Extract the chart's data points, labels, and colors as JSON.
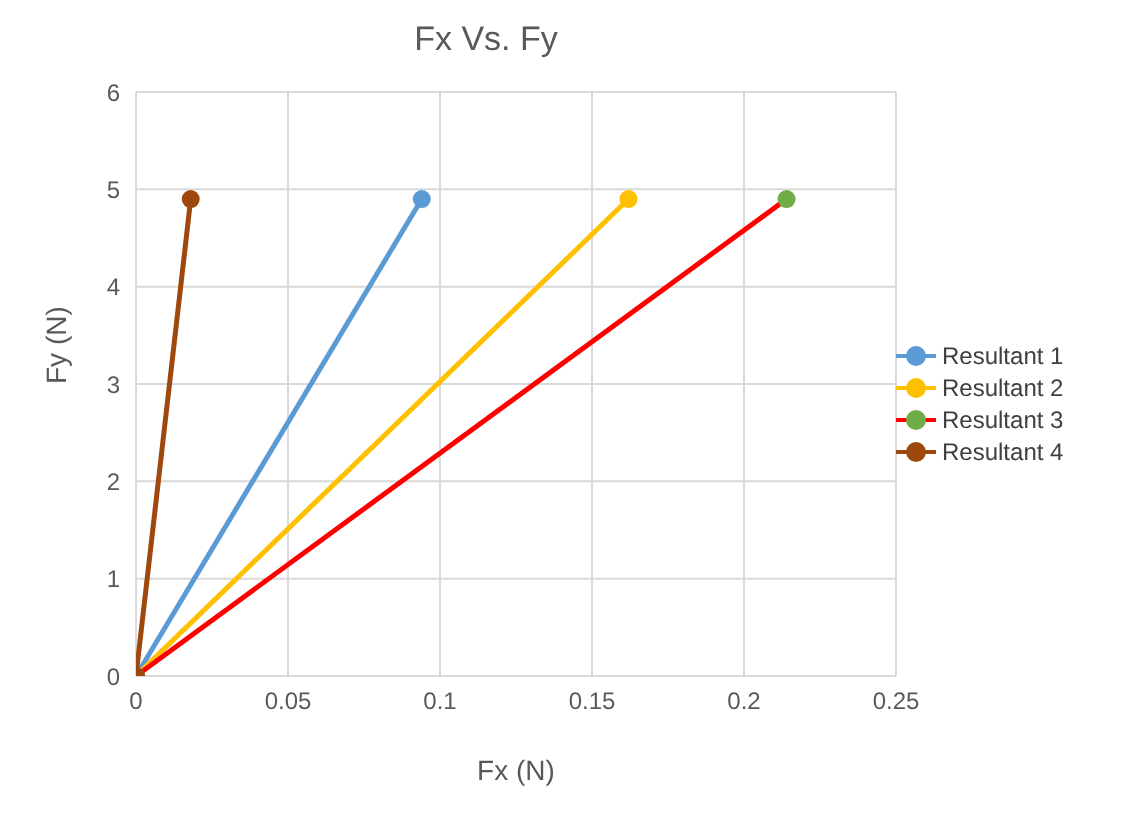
{
  "chart_data": {
    "type": "line",
    "title": "Fx Vs. Fy",
    "xlabel": "Fx (N)",
    "ylabel": "Fy  (N)",
    "xlim": [
      0,
      0.25
    ],
    "xticks": [
      0,
      0.05,
      0.1,
      0.15,
      0.2,
      0.25
    ],
    "ylim": [
      0,
      6
    ],
    "yticks": [
      0,
      1,
      2,
      3,
      4,
      5,
      6
    ],
    "grid": true,
    "legend": "right",
    "marker": "circle",
    "line_style": "solid",
    "series": [
      {
        "name": "Resultant 1",
        "color": "#5b9bd5",
        "x": [
          0,
          0.094
        ],
        "values": [
          0,
          4.9
        ]
      },
      {
        "name": "Resultant 2",
        "color": "#ffc000",
        "x": [
          0,
          0.162
        ],
        "values": [
          0,
          4.9
        ]
      },
      {
        "name": "Resultant 3",
        "color": "#ff0000",
        "colors": [
          "#70ad47",
          "#70ad47"
        ],
        "x": [
          0,
          0.214
        ],
        "values": [
          0,
          4.9
        ]
      },
      {
        "name": "Resultant 4",
        "color": "#9e480e",
        "x": [
          0,
          0.018
        ],
        "values": [
          0,
          4.9
        ]
      }
    ]
  }
}
